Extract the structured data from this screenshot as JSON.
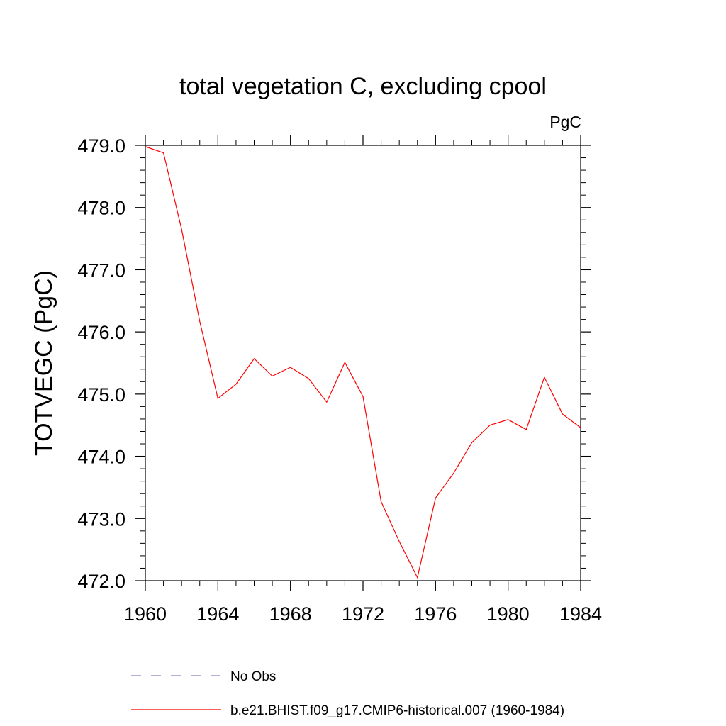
{
  "chart_data": {
    "type": "line",
    "title": "total vegetation C, excluding cpool",
    "units": "PgC",
    "xlabel": "",
    "ylabel": "TOTVEGC  (PgC)",
    "xlim": [
      1960,
      1984
    ],
    "ylim": [
      472.0,
      479.0
    ],
    "x_ticks": [
      "1960",
      "1964",
      "1968",
      "1972",
      "1976",
      "1980",
      "1984"
    ],
    "y_ticks": [
      "472.0",
      "473.0",
      "474.0",
      "475.0",
      "476.0",
      "477.0",
      "478.0",
      "479.0"
    ],
    "grid": false,
    "legend_position": "bottom",
    "series": [
      {
        "name": "b.e21.BHIST.f09_g17.CMIP6-historical.007 (1960-1984)",
        "color": "#ff0000",
        "style": "solid",
        "x": [
          1960,
          1961,
          1962,
          1963,
          1964,
          1965,
          1966,
          1967,
          1968,
          1969,
          1970,
          1971,
          1972,
          1973,
          1974,
          1975,
          1976,
          1977,
          1978,
          1979,
          1980,
          1981,
          1982,
          1983,
          1984
        ],
        "values": [
          478.98,
          478.88,
          477.65,
          476.17,
          474.93,
          475.16,
          475.57,
          475.29,
          475.43,
          475.25,
          474.87,
          475.51,
          474.96,
          473.27,
          472.63,
          472.05,
          473.33,
          473.73,
          474.22,
          474.5,
          474.59,
          474.43,
          475.27,
          474.68,
          474.46
        ]
      }
    ],
    "legend": [
      {
        "label": "No Obs",
        "color": "#8080c0",
        "style": "dashed"
      },
      {
        "label": "b.e21.BHIST.f09_g17.CMIP6-historical.007 (1960-1984)",
        "color": "#ff0000",
        "style": "solid"
      }
    ]
  }
}
